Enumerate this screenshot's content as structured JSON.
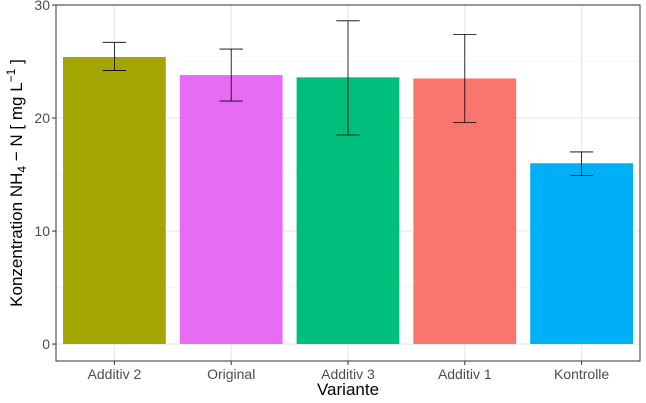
{
  "chart_data": {
    "type": "bar",
    "title": "",
    "xlabel": "Variante",
    "ylabel": {
      "prefix": "Konzentration NH",
      "sub1": "4",
      "mid": " − N [ mg L",
      "sup": "−1",
      "suffix": " ]"
    },
    "categories": [
      "Additiv 2",
      "Original",
      "Additiv 3",
      "Additiv 1",
      "Kontrolle"
    ],
    "values": [
      25.4,
      23.8,
      23.6,
      23.5,
      16.0
    ],
    "error_low": [
      24.2,
      21.5,
      18.5,
      19.6,
      14.9
    ],
    "error_high": [
      26.7,
      26.1,
      28.6,
      27.4,
      17.0
    ],
    "colors": [
      "#A3A500",
      "#E76BF3",
      "#00BF7D",
      "#F8766D",
      "#00B0F6"
    ],
    "ylim": [
      -1.5,
      30
    ],
    "yticks": [
      0,
      10,
      20,
      30
    ],
    "grid": true,
    "legend": "none"
  }
}
